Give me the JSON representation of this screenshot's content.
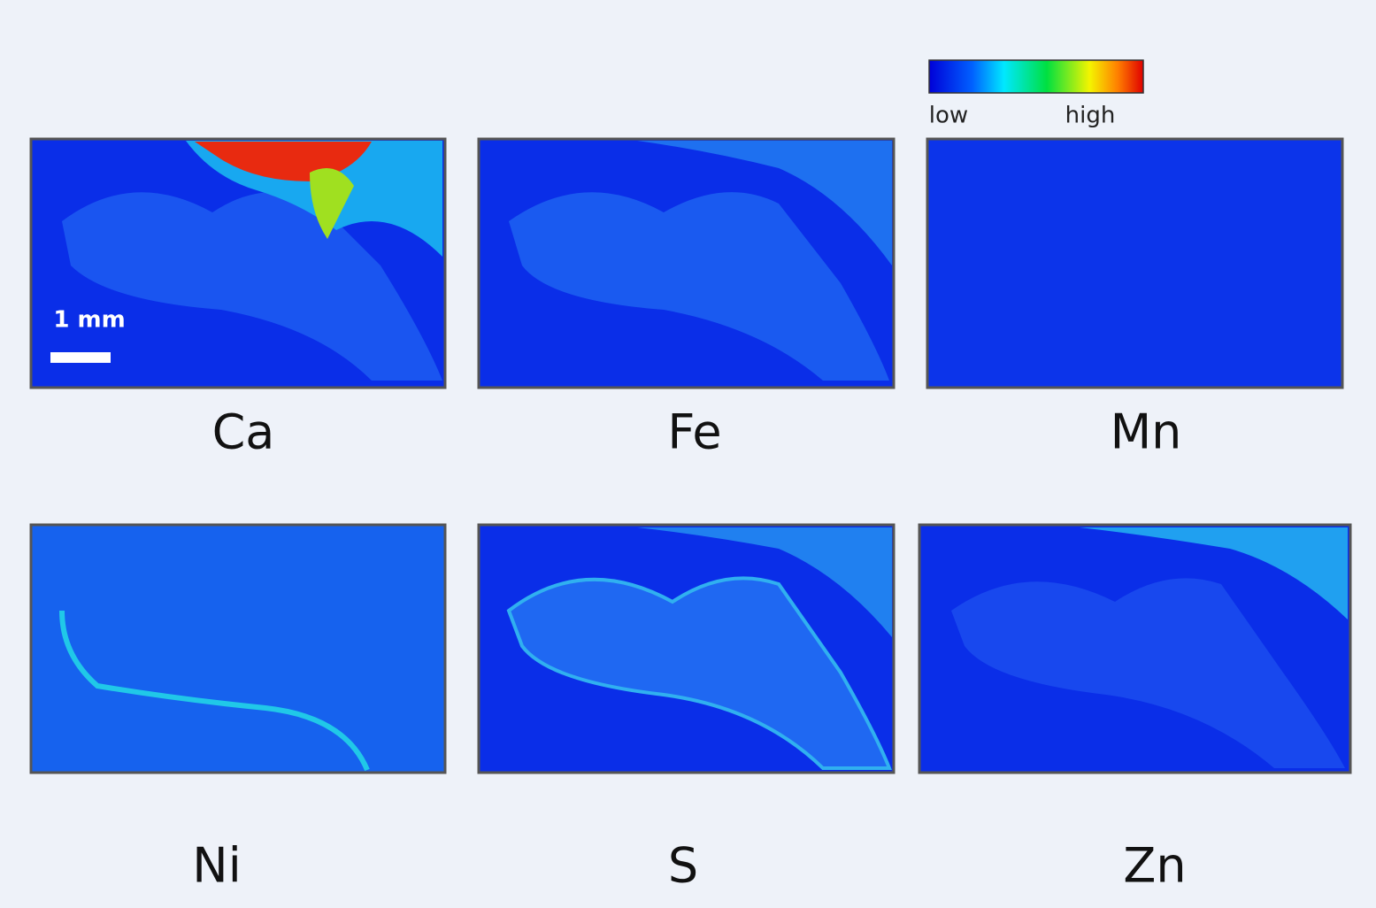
{
  "colorbar": {
    "low_label": "low",
    "high_label": "high"
  },
  "scale_bar": {
    "label": "1 mm"
  },
  "panels": [
    {
      "label": "Ca"
    },
    {
      "label": "Fe"
    },
    {
      "label": "Mn"
    },
    {
      "label": "Ni"
    },
    {
      "label": "S"
    },
    {
      "label": "Zn"
    }
  ]
}
